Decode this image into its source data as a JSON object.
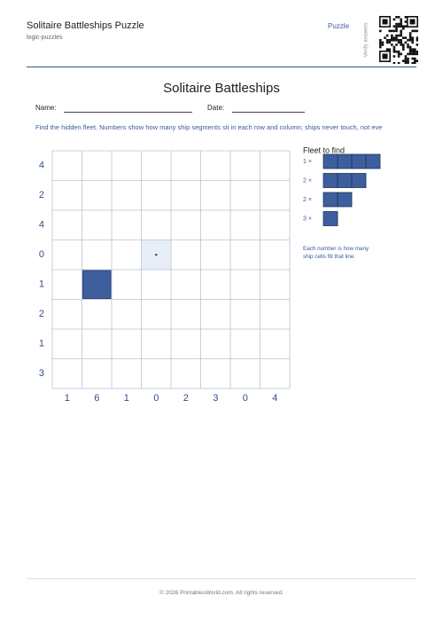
{
  "header": {
    "title": "Solitaire Battleships Puzzle",
    "subtitle": "logic-puzzles",
    "tag": "Puzzle",
    "verify": "Verify answers"
  },
  "title": "Solitaire Battleships",
  "fields": {
    "name": "Name:",
    "date": "Date:"
  },
  "instructions": "Find the hidden fleet. Numbers show how many ship segments sit in each row and column; ships never touch, not eve",
  "puzzle": {
    "row_clues": [
      4,
      2,
      4,
      0,
      1,
      2,
      1,
      3
    ],
    "column_clues": [
      1,
      6,
      1,
      0,
      2,
      3,
      0,
      4
    ]
  },
  "fleet": {
    "title": "Fleet to find",
    "ships": [
      {
        "label": "1 ×",
        "size": 4
      },
      {
        "label": "2 ×",
        "size": 3
      },
      {
        "label": "2 ×",
        "size": 2
      },
      {
        "label": "3 ×",
        "size": 1
      }
    ],
    "note": "Each number is how many ship cells fill that line."
  },
  "footer": "© 2026 PrintablesWorld.com. All rights reserved."
}
